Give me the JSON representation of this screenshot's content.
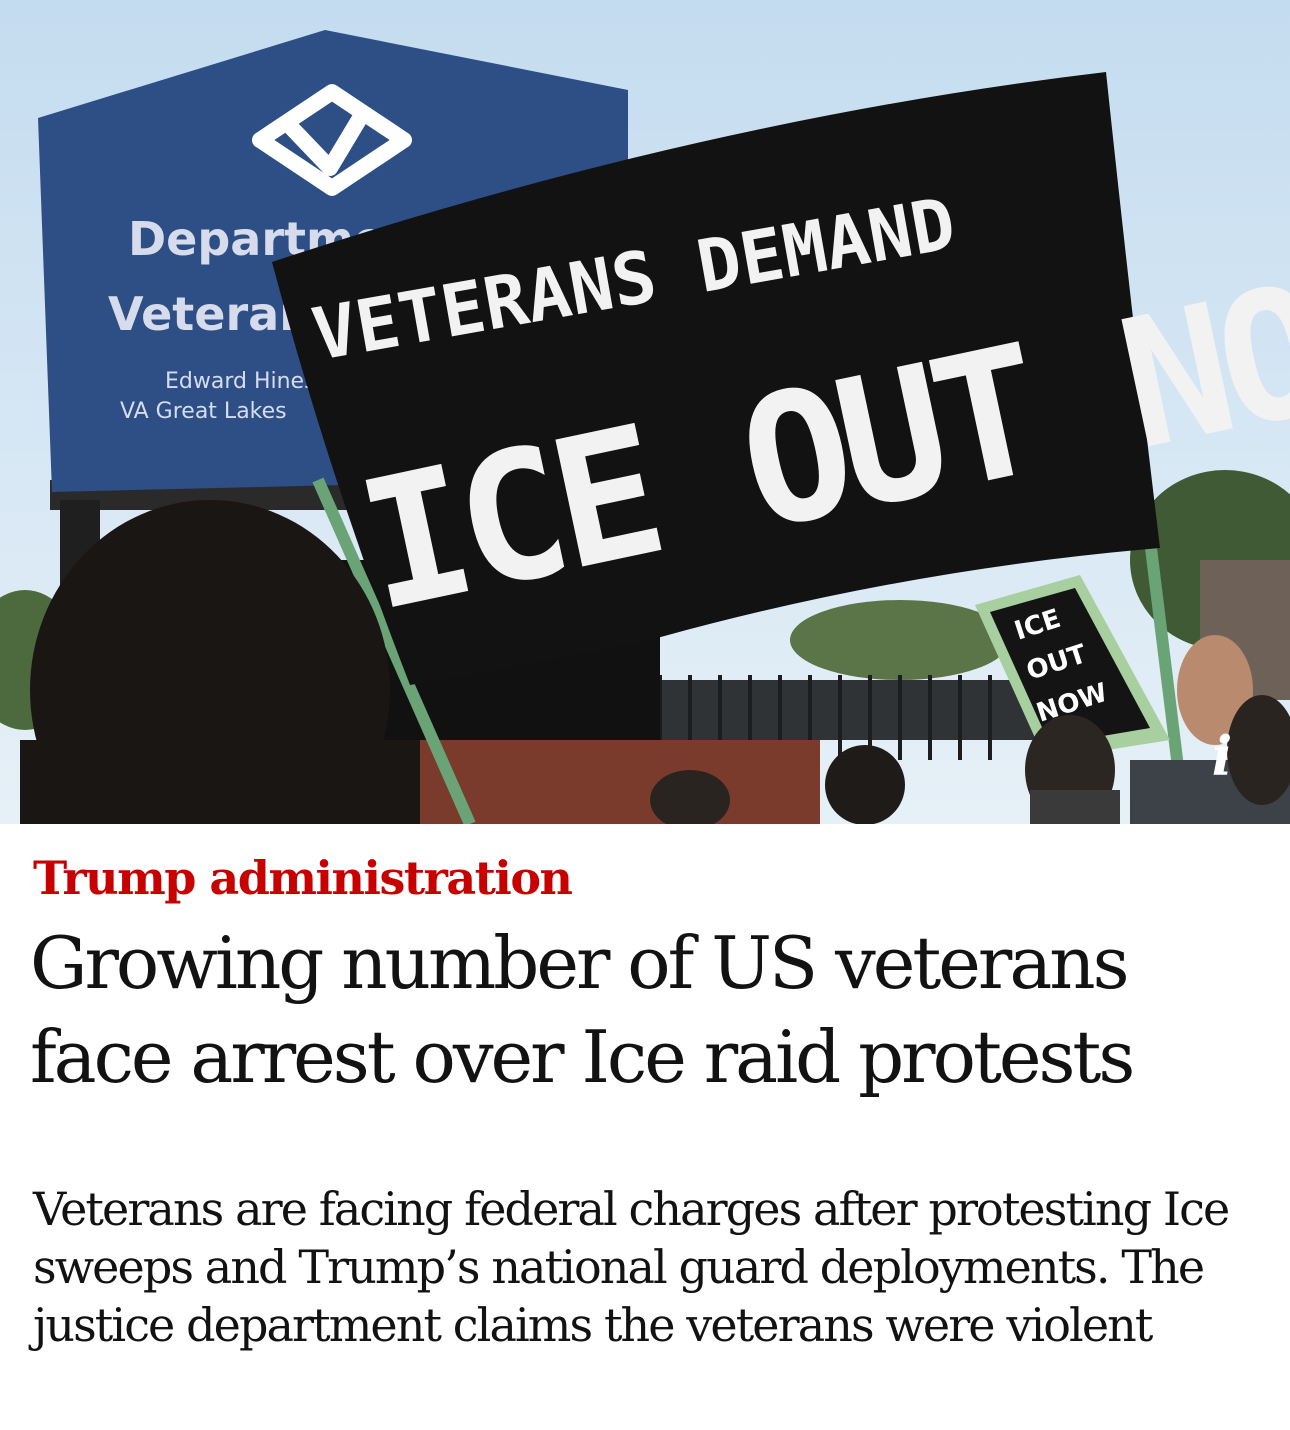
{
  "hero": {
    "sign_line1": "Department of",
    "sign_line2": "Veterans Affairs",
    "sign_line3": "Edward Hines Jr.",
    "sign_line4": "VA Great Lakes",
    "banner_line1": "VETERANS DEMAND",
    "banner_line2": "ICE OUT NOW",
    "placard_line1": "ICE",
    "placard_line2": "OUT",
    "placard_line3": "NOW",
    "info_icon_label": "i",
    "colors": {
      "sky": "#cfe3f2",
      "sign": "#2d4f86",
      "banner": "#121212"
    }
  },
  "article": {
    "kicker": "Trump administration",
    "headline": "Growing number of US veterans face arrest over Ice raid protests",
    "standfirst": "Veterans are facing federal charges after protesting Ice sweeps and Trump’s national guard deployments. The justice department claims the veterans were violent",
    "colors": {
      "kicker": "#c70000",
      "text": "#121212"
    }
  }
}
